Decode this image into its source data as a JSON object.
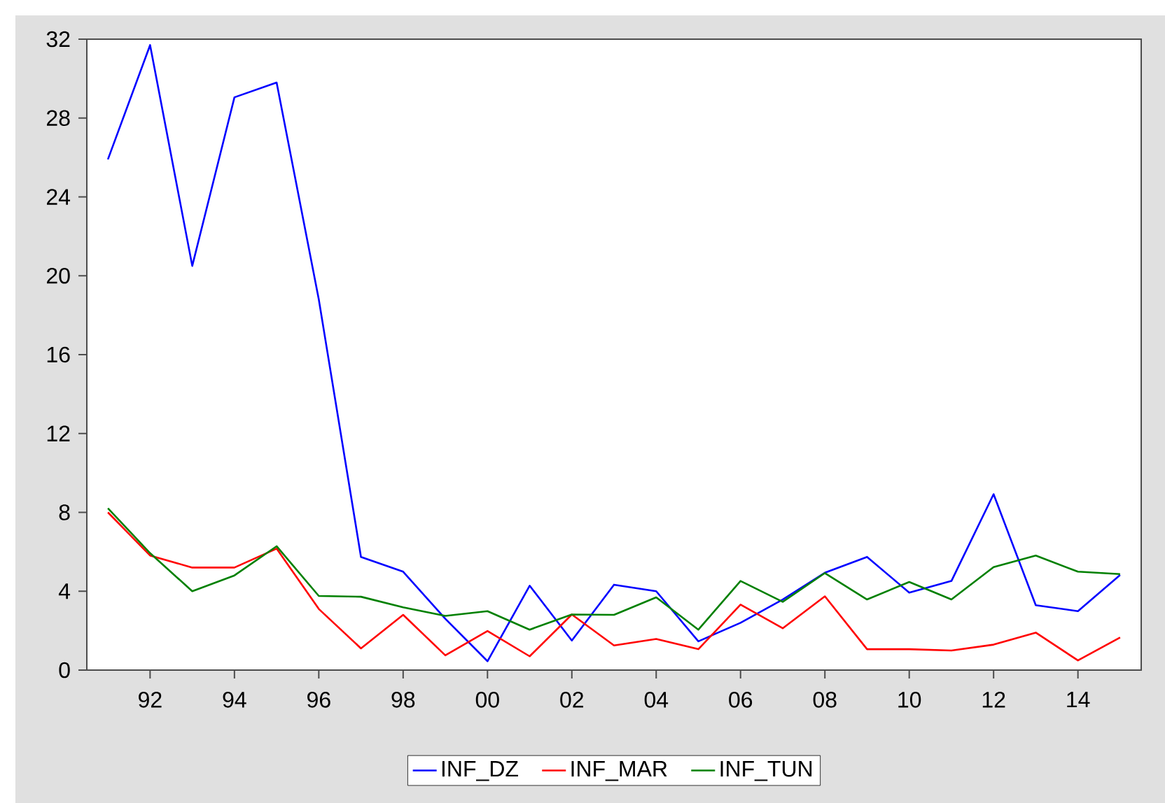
{
  "chart_data": {
    "type": "line",
    "x": [
      1991,
      1992,
      1993,
      1994,
      1995,
      1996,
      1997,
      1998,
      1999,
      2000,
      2001,
      2002,
      2003,
      2004,
      2005,
      2006,
      2007,
      2008,
      2009,
      2010,
      2011,
      2012,
      2013,
      2014,
      2015
    ],
    "series": [
      {
        "name": "INF_DZ",
        "color": "#0000ff",
        "values": [
          25.9,
          31.7,
          20.5,
          29.05,
          29.8,
          18.8,
          5.74,
          4.99,
          2.6,
          0.45,
          4.28,
          1.5,
          4.33,
          4.0,
          1.46,
          2.4,
          3.58,
          4.94,
          5.74,
          3.93,
          4.52,
          8.92,
          3.29,
          2.99,
          4.82
        ]
      },
      {
        "name": "INF_MAR",
        "color": "#ff0000",
        "values": [
          8.0,
          5.81,
          5.2,
          5.2,
          6.16,
          3.1,
          1.1,
          2.8,
          0.75,
          1.98,
          0.7,
          2.82,
          1.25,
          1.58,
          1.06,
          3.32,
          2.12,
          3.74,
          1.06,
          1.06,
          0.99,
          1.29,
          1.9,
          0.49,
          1.65
        ]
      },
      {
        "name": "INF_TUN",
        "color": "#008000",
        "values": [
          8.21,
          5.93,
          4.0,
          4.8,
          6.28,
          3.76,
          3.72,
          3.18,
          2.75,
          2.99,
          2.05,
          2.82,
          2.8,
          3.69,
          2.05,
          4.52,
          3.46,
          4.92,
          3.58,
          4.47,
          3.58,
          5.22,
          5.81,
          4.99,
          4.87
        ]
      }
    ],
    "xlim": [
      1990.5,
      2015.5
    ],
    "ylim": [
      0,
      32
    ],
    "xticks": [
      {
        "value": 1992,
        "label": "92"
      },
      {
        "value": 1994,
        "label": "94"
      },
      {
        "value": 1996,
        "label": "96"
      },
      {
        "value": 1998,
        "label": "98"
      },
      {
        "value": 2000,
        "label": "00"
      },
      {
        "value": 2002,
        "label": "02"
      },
      {
        "value": 2004,
        "label": "04"
      },
      {
        "value": 2006,
        "label": "06"
      },
      {
        "value": 2008,
        "label": "08"
      },
      {
        "value": 2010,
        "label": "10"
      },
      {
        "value": 2012,
        "label": "12"
      },
      {
        "value": 2014,
        "label": "14"
      }
    ],
    "yticks": [
      0,
      4,
      8,
      12,
      16,
      20,
      24,
      28,
      32
    ],
    "legend": "bottom",
    "grid": false,
    "marker": "none",
    "line_style": "solid"
  }
}
